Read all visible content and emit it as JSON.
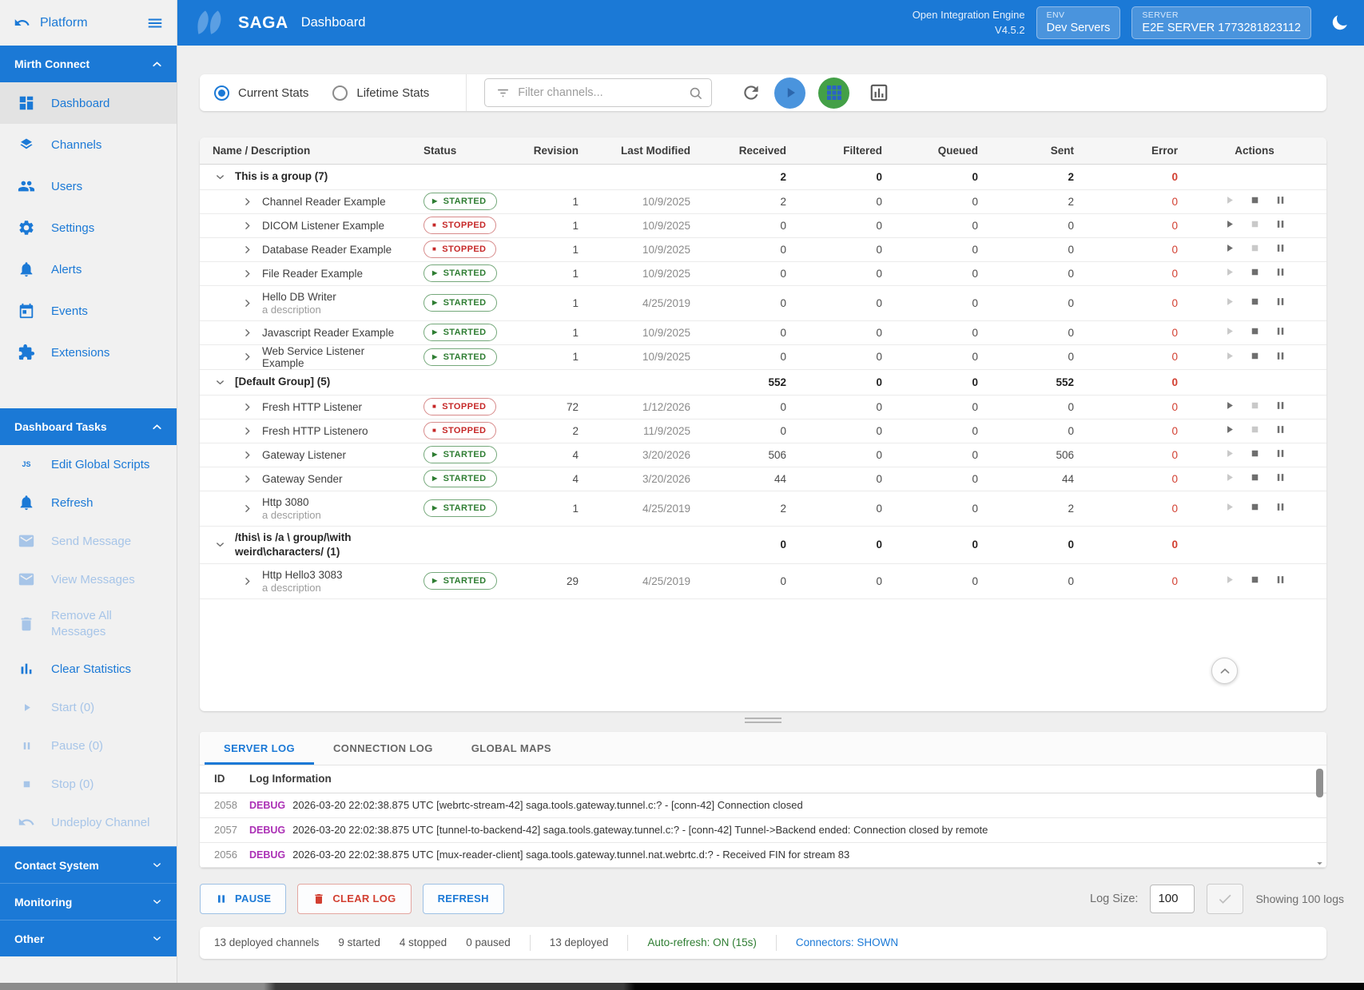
{
  "sidebar": {
    "platform_label": "Platform",
    "mirth_header": "Mirth Connect",
    "tasks_header": "Dashboard Tasks",
    "nav_items": [
      {
        "icon": "dashboard-icon",
        "label": "Dashboard",
        "active": true
      },
      {
        "icon": "layers-icon",
        "label": "Channels"
      },
      {
        "icon": "users-icon",
        "label": "Users"
      },
      {
        "icon": "gear-icon",
        "label": "Settings"
      },
      {
        "icon": "bell-icon",
        "label": "Alerts"
      },
      {
        "icon": "calendar-icon",
        "label": "Events"
      },
      {
        "icon": "puzzle-icon",
        "label": "Extensions"
      }
    ],
    "task_items": [
      {
        "icon": "js-icon",
        "label": "Edit Global Scripts"
      },
      {
        "icon": "bell-icon",
        "label": "Refresh"
      },
      {
        "icon": "mail-icon",
        "label": "Send Message",
        "disabled": true
      },
      {
        "icon": "mail-icon",
        "label": "View Messages",
        "disabled": true
      },
      {
        "icon": "trash-icon",
        "label": "Remove All Messages",
        "disabled": true,
        "two_line": true
      },
      {
        "icon": "bar-chart-icon",
        "label": "Clear Statistics"
      },
      {
        "icon": "play-icon",
        "label": "Start (0)",
        "disabled": true
      },
      {
        "icon": "pause-icon",
        "label": "Pause (0)",
        "disabled": true
      },
      {
        "icon": "stop-icon",
        "label": "Stop (0)",
        "disabled": true
      },
      {
        "icon": "undo-icon",
        "label": "Undeploy Channel",
        "disabled": true
      }
    ],
    "collapsed_sections": [
      "Contact System",
      "Monitoring",
      "Other"
    ]
  },
  "header": {
    "brand": "SAGA",
    "page_title": "Dashboard",
    "engine_name": "Open Integration Engine",
    "engine_version": "V4.5.2",
    "env_label": "ENV",
    "env_value": "Dev Servers",
    "server_label": "SERVER",
    "server_value": "E2E SERVER 1773281823112"
  },
  "toolbar": {
    "radio_current": "Current Stats",
    "radio_lifetime": "Lifetime Stats",
    "filter_placeholder": "Filter channels...",
    "icons": [
      "funnel-icon",
      "search-icon",
      "refresh-icon",
      "play-icon",
      "grid-icon",
      "chart-outline-icon"
    ]
  },
  "channels_table": {
    "columns": [
      "Name / Description",
      "Status",
      "Revision",
      "Last Modified",
      "Received",
      "Filtered",
      "Queued",
      "Sent",
      "Error",
      "Actions"
    ],
    "rows": [
      {
        "type": "group",
        "name": "This is a group (7)",
        "received": "2",
        "filtered": "0",
        "queued": "0",
        "sent": "2",
        "error": "0"
      },
      {
        "type": "channel",
        "name": "Channel Reader Example",
        "status": "STARTED",
        "state": "started",
        "revision": "1",
        "modified": "10/9/2025",
        "received": "2",
        "filtered": "0",
        "queued": "0",
        "sent": "2",
        "error": "0"
      },
      {
        "type": "channel",
        "name": "DICOM Listener Example",
        "status": "STOPPED",
        "state": "stopped",
        "revision": "1",
        "modified": "10/9/2025",
        "received": "0",
        "filtered": "0",
        "queued": "0",
        "sent": "0",
        "error": "0"
      },
      {
        "type": "channel",
        "name": "Database Reader Example",
        "status": "STOPPED",
        "state": "stopped",
        "revision": "1",
        "modified": "10/9/2025",
        "received": "0",
        "filtered": "0",
        "queued": "0",
        "sent": "0",
        "error": "0"
      },
      {
        "type": "channel",
        "name": "File Reader Example",
        "status": "STARTED",
        "state": "started",
        "revision": "1",
        "modified": "10/9/2025",
        "received": "0",
        "filtered": "0",
        "queued": "0",
        "sent": "0",
        "error": "0"
      },
      {
        "type": "channel",
        "name": "Hello DB Writer",
        "description": "a description",
        "status": "STARTED",
        "state": "started",
        "revision": "1",
        "modified": "4/25/2019",
        "received": "0",
        "filtered": "0",
        "queued": "0",
        "sent": "0",
        "error": "0"
      },
      {
        "type": "channel",
        "name": "Javascript Reader Example",
        "status": "STARTED",
        "state": "started",
        "revision": "1",
        "modified": "10/9/2025",
        "received": "0",
        "filtered": "0",
        "queued": "0",
        "sent": "0",
        "error": "0"
      },
      {
        "type": "channel",
        "name": "Web Service Listener Example",
        "status": "STARTED",
        "state": "started",
        "revision": "1",
        "modified": "10/9/2025",
        "received": "0",
        "filtered": "0",
        "queued": "0",
        "sent": "0",
        "error": "0"
      },
      {
        "type": "group",
        "name": "[Default Group] (5)",
        "received": "552",
        "filtered": "0",
        "queued": "0",
        "sent": "552",
        "error": "0"
      },
      {
        "type": "channel",
        "name": "Fresh HTTP Listener",
        "status": "STOPPED",
        "state": "stopped",
        "revision": "72",
        "modified": "1/12/2026",
        "received": "0",
        "filtered": "0",
        "queued": "0",
        "sent": "0",
        "error": "0"
      },
      {
        "type": "channel",
        "name": "Fresh HTTP Listenero",
        "status": "STOPPED",
        "state": "stopped",
        "revision": "2",
        "modified": "11/9/2025",
        "received": "0",
        "filtered": "0",
        "queued": "0",
        "sent": "0",
        "error": "0"
      },
      {
        "type": "channel",
        "name": "Gateway Listener",
        "status": "STARTED",
        "state": "started",
        "revision": "4",
        "modified": "3/20/2026",
        "received": "506",
        "filtered": "0",
        "queued": "0",
        "sent": "506",
        "error": "0"
      },
      {
        "type": "channel",
        "name": "Gateway Sender",
        "status": "STARTED",
        "state": "started",
        "revision": "4",
        "modified": "3/20/2026",
        "received": "44",
        "filtered": "0",
        "queued": "0",
        "sent": "44",
        "error": "0"
      },
      {
        "type": "channel",
        "name": "Http 3080",
        "description": "a description",
        "status": "STARTED",
        "state": "started",
        "revision": "1",
        "modified": "4/25/2019",
        "received": "2",
        "filtered": "0",
        "queued": "0",
        "sent": "2",
        "error": "0"
      },
      {
        "type": "group",
        "name": "/this\\ is /a \\ group/\\with weird\\characters/ (1)",
        "received": "0",
        "filtered": "0",
        "queued": "0",
        "sent": "0",
        "error": "0"
      },
      {
        "type": "channel",
        "name": "Http Hello3 3083",
        "description": "a description",
        "status": "STARTED",
        "state": "started",
        "revision": "29",
        "modified": "4/25/2019",
        "received": "0",
        "filtered": "0",
        "queued": "0",
        "sent": "0",
        "error": "0"
      }
    ]
  },
  "log_panel": {
    "tabs": [
      {
        "label": "SERVER LOG",
        "active": true
      },
      {
        "label": "CONNECTION LOG",
        "active": false
      },
      {
        "label": "GLOBAL MAPS",
        "active": false
      }
    ],
    "columns": [
      "ID",
      "Log Information"
    ],
    "rows": [
      {
        "id": "2058",
        "level": "DEBUG",
        "text": "2026-03-20 22:02:38.875 UTC [webrtc-stream-42] saga.tools.gateway.tunnel.c:? - [conn-42] Connection closed"
      },
      {
        "id": "2057",
        "level": "DEBUG",
        "text": "2026-03-20 22:02:38.875 UTC [tunnel-to-backend-42] saga.tools.gateway.tunnel.c:? - [conn-42] Tunnel->Backend ended: Connection closed by remote"
      },
      {
        "id": "2056",
        "level": "DEBUG",
        "text": "2026-03-20 22:02:38.875 UTC [mux-reader-client] saga.tools.gateway.tunnel.nat.webrtc.d:? - Received FIN for stream 83"
      }
    ]
  },
  "log_controls": {
    "pause_label": "PAUSE",
    "clear_label": "CLEAR LOG",
    "refresh_label": "REFRESH",
    "log_size_label": "Log Size:",
    "log_size_value": "100",
    "showing_label": "Showing 100 logs"
  },
  "status_bar": {
    "deployed_channels": "13 deployed channels",
    "started": "9 started",
    "stopped": "4 stopped",
    "paused": "0 paused",
    "deployed": "13 deployed",
    "auto_refresh": "Auto-refresh: ON (15s)",
    "connectors": "Connectors: SHOWN"
  },
  "colors": {
    "accent_blue": "#1b79d6",
    "started_green": "#2e7d32",
    "stopped_red": "#c62828",
    "error_red": "#d23f31",
    "debug_purple": "#ab2fb5",
    "grid_button_green": "#43a047"
  }
}
